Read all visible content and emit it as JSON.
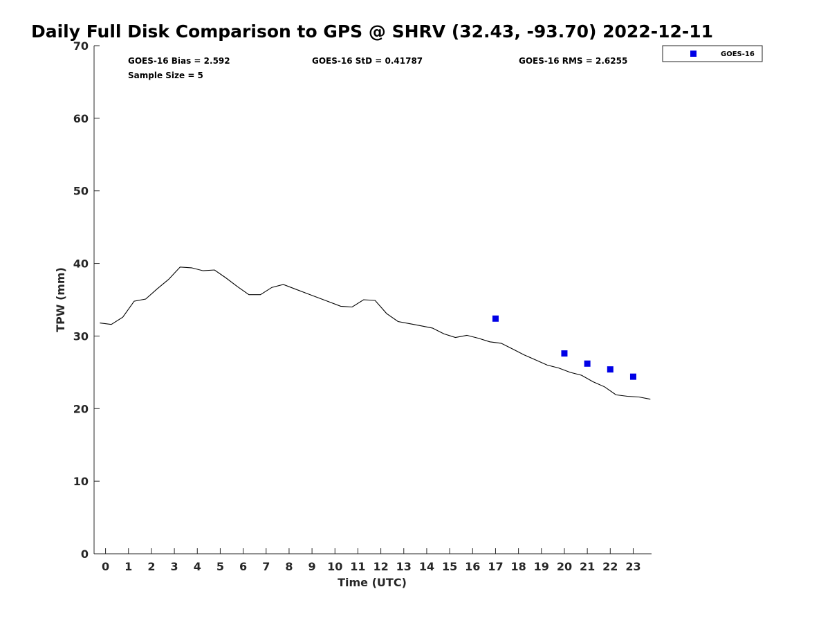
{
  "title": "Daily Full Disk Comparison to GPS @ SHRV (32.43, -93.70) 2022-12-11",
  "stats": {
    "bias": "GOES-16 Bias = 2.592",
    "std": "GOES-16 StD = 0.41787",
    "rms": "GOES-16 RMS = 2.6255",
    "sample": "Sample Size = 5"
  },
  "legend": {
    "label": "GOES-16"
  },
  "colors": {
    "gps_line": "#000000",
    "goes_marker": "#0000e6",
    "axis": "#262626"
  },
  "chart_data": {
    "type": "scatter",
    "title": "Daily Full Disk Comparison to GPS @ SHRV (32.43, -93.70) 2022-12-11",
    "xlabel": "Time (UTC)",
    "ylabel": "TPW (mm)",
    "xlim": [
      -0.5,
      23.8
    ],
    "ylim": [
      0,
      70
    ],
    "x_ticks": [
      0,
      1,
      2,
      3,
      4,
      5,
      6,
      7,
      8,
      9,
      10,
      11,
      12,
      13,
      14,
      15,
      16,
      17,
      18,
      19,
      20,
      21,
      22,
      23
    ],
    "y_ticks": [
      0,
      10,
      20,
      30,
      40,
      50,
      60,
      70
    ],
    "grid": false,
    "legend_position": "top-right, outside plot",
    "series": [
      {
        "type": "line",
        "x": [
          -0.25,
          0.25,
          0.75,
          1.25,
          1.75,
          2.25,
          2.75,
          3.25,
          3.75,
          4.25,
          4.75,
          5.25,
          5.75,
          6.25,
          6.75,
          7.25,
          7.75,
          8.25,
          8.75,
          9.25,
          9.75,
          10.25,
          10.75,
          11.25,
          11.75,
          12.25,
          12.75,
          13.25,
          13.75,
          14.25,
          14.75,
          15.25,
          15.75,
          16.25,
          16.75,
          17.25,
          17.75,
          18.25,
          18.75,
          19.25,
          19.75,
          20.25,
          20.75,
          21.25,
          21.75,
          22.25,
          22.75,
          23.25,
          23.75
        ],
        "y": [
          31.8,
          31.6,
          32.6,
          34.8,
          35.1,
          36.5,
          37.8,
          39.5,
          39.4,
          39.0,
          39.1,
          38.0,
          36.8,
          35.7,
          35.7,
          36.7,
          37.1,
          36.5,
          35.9,
          35.3,
          34.7,
          34.1,
          34.0,
          35.0,
          34.9,
          33.1,
          32.0,
          31.7,
          31.4,
          31.1,
          30.3,
          29.8,
          30.1,
          29.7,
          29.2,
          29.0,
          28.2,
          27.4,
          26.7,
          26.0,
          25.6,
          25.0,
          24.6,
          23.7,
          23.0,
          21.9,
          21.7,
          21.6,
          21.3
        ]
      },
      {
        "name": "GOES-16",
        "type": "scatter",
        "marker": "square",
        "x": [
          17,
          20,
          21,
          22,
          23
        ],
        "y": [
          32.4,
          27.6,
          26.2,
          25.4,
          24.4
        ]
      }
    ]
  }
}
